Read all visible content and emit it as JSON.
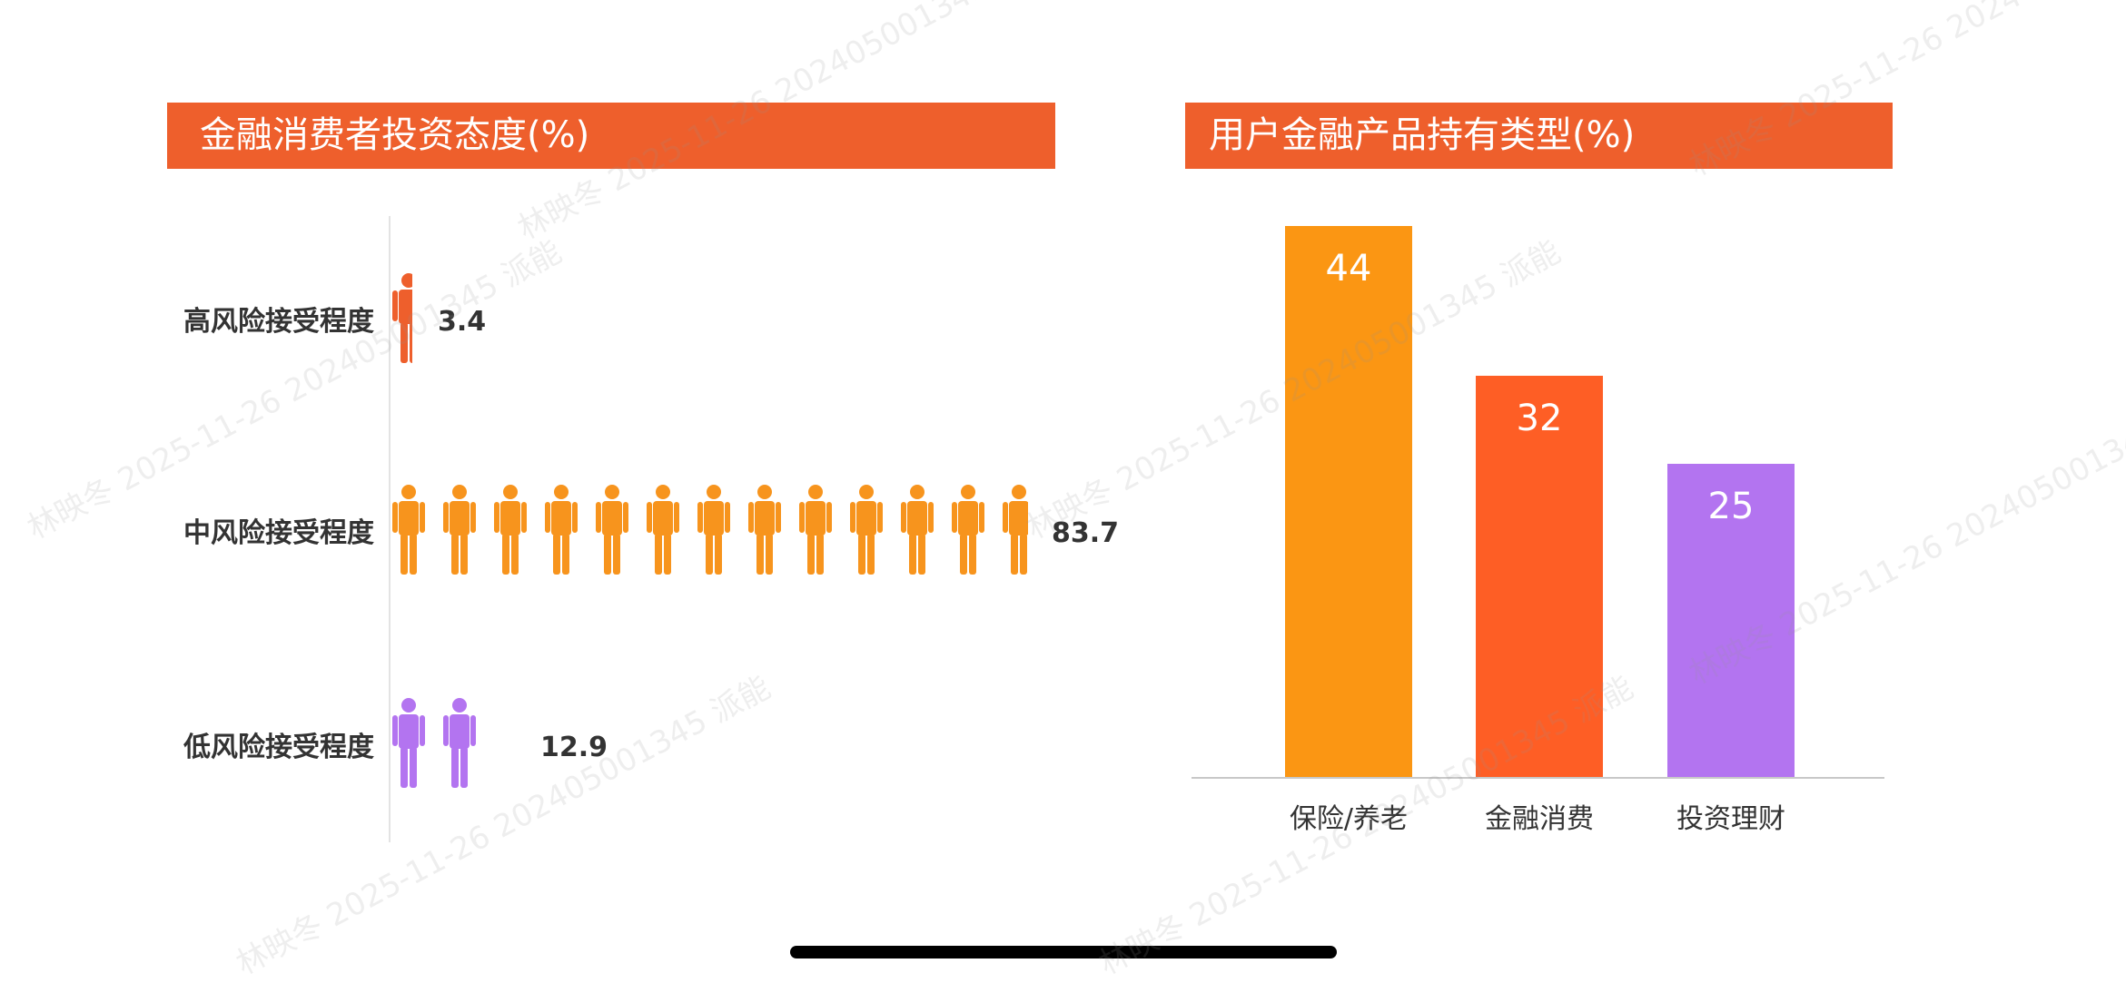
{
  "chart_data": [
    {
      "type": "pictograph",
      "title": "金融消费者投资态度(%)",
      "categories": [
        "高风险接受程度",
        "中风险接受程度",
        "低风险接受程度"
      ],
      "values": [
        3.4,
        83.7,
        12.9
      ],
      "value_labels": [
        "3.4",
        "83.7",
        "12.9"
      ],
      "colors": [
        "#ee5f2c",
        "#f7941d",
        "#b374f0"
      ]
    },
    {
      "type": "bar",
      "title": "用户金融产品持有类型(%)",
      "categories": [
        "保险/养老",
        "金融消费",
        "投资理财"
      ],
      "values": [
        44,
        32,
        25
      ],
      "value_labels": [
        "44",
        "32",
        "25"
      ],
      "colors": [
        "#fb9613",
        "#fe5e25",
        "#b374f0"
      ]
    }
  ],
  "watermark": "林映冬 2025-11-26 202405001345 派能"
}
